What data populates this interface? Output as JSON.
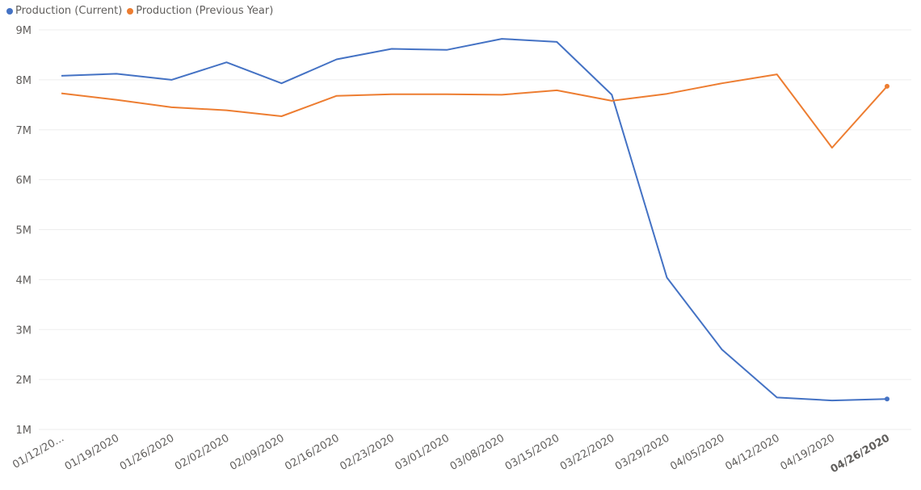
{
  "chart_data": {
    "type": "line",
    "categories": [
      "01/12/20...",
      "01/19/2020",
      "01/26/2020",
      "02/02/2020",
      "02/09/2020",
      "02/16/2020",
      "02/23/2020",
      "03/01/2020",
      "03/08/2020",
      "03/15/2020",
      "03/22/2020",
      "03/29/2020",
      "04/05/2020",
      "04/12/2020",
      "04/19/2020",
      "04/26/2020"
    ],
    "highlighted_category": "04/26/2020",
    "y_ticks": [
      "1M",
      "2M",
      "3M",
      "4M",
      "5M",
      "6M",
      "7M",
      "8M",
      "9M"
    ],
    "ylim": [
      1000000,
      9000000
    ],
    "grid": true,
    "legend_position": "top-left",
    "series": [
      {
        "name": "Production (Current)",
        "color": "#4472C4",
        "values": [
          8080000,
          8120000,
          8000000,
          8350000,
          7930000,
          8410000,
          8620000,
          8600000,
          8820000,
          8760000,
          7700000,
          4040000,
          2600000,
          1640000,
          1580000,
          1610000
        ]
      },
      {
        "name": "Production (Previous Year)",
        "color": "#ED7D31",
        "values": [
          7730000,
          7600000,
          7450000,
          7390000,
          7270000,
          7680000,
          7710000,
          7710000,
          7700000,
          7790000,
          7580000,
          7720000,
          7930000,
          8110000,
          6640000,
          7870000
        ]
      }
    ]
  }
}
